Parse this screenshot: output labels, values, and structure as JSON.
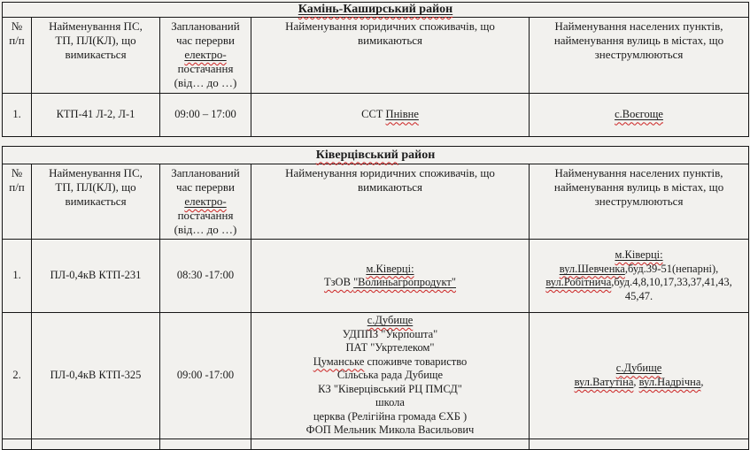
{
  "page": {
    "background": "#f2f1ee",
    "text_color": "#1c1c1c",
    "border_color": "#161616",
    "spellcheck_color": "#cc2222"
  },
  "tables": [
    {
      "name": "kamin-kashyrskyi",
      "title": [
        {
          "t": "Камінь-Каширський район",
          "u": true,
          "sp": true
        }
      ],
      "header": [
        [
          [
            {
              "t": "№"
            }
          ],
          [
            {
              "t": "п/п"
            }
          ]
        ],
        [
          [
            {
              "t": "Найменування ПС,"
            }
          ],
          [
            {
              "t": "ТП, ПЛ(КЛ), що"
            }
          ],
          [
            {
              "t": "вимикається"
            }
          ]
        ],
        [
          [
            {
              "t": "Запланований"
            }
          ],
          [
            {
              "t": "час перерви"
            }
          ],
          [
            {
              "t": "електро-",
              "u": true,
              "sp": true
            }
          ],
          [
            {
              "t": "постачання"
            }
          ],
          [
            {
              "t": "(від… до …)"
            }
          ]
        ],
        [
          [
            {
              "t": "Найменування юридичних споживачів, що"
            }
          ],
          [
            {
              "t": "вимикаються"
            }
          ]
        ],
        [
          [
            {
              "t": "Найменування населених пунктів,"
            }
          ],
          [
            {
              "t": "найменування вулиць в містах, що"
            }
          ],
          [
            {
              "t": "знеструмлюються"
            }
          ]
        ]
      ],
      "rows": [
        [
          [
            [
              {
                "t": "1."
              }
            ]
          ],
          [
            [
              {
                "t": "КТП-41 Л-2, Л-1"
              }
            ]
          ],
          [
            [
              {
                "t": "09:00 – 17:00"
              }
            ]
          ],
          [
            [
              {
                "t": "ССТ "
              },
              {
                "t": "Пнівне",
                "u": true,
                "sp": true
              }
            ]
          ],
          [
            [
              {
                "t": "с.Воєгоще",
                "u": true,
                "sp": true
              }
            ]
          ]
        ]
      ]
    },
    {
      "name": "kivertsivskyi",
      "title": [
        {
          "t": "Ківерцівський",
          "sp": true
        },
        {
          "t": " район"
        }
      ],
      "header": [
        [
          [
            {
              "t": "№"
            }
          ],
          [
            {
              "t": "п/п"
            }
          ]
        ],
        [
          [
            {
              "t": "Найменування ПС,"
            }
          ],
          [
            {
              "t": "ТП, ПЛ(КЛ), що"
            }
          ],
          [
            {
              "t": "вимикається"
            }
          ]
        ],
        [
          [
            {
              "t": "Запланований"
            }
          ],
          [
            {
              "t": "час перерви"
            }
          ],
          [
            {
              "t": "електро-",
              "u": true,
              "sp": true
            }
          ],
          [
            {
              "t": "постачання"
            }
          ],
          [
            {
              "t": "(від… до …)"
            }
          ]
        ],
        [
          [
            {
              "t": "Найменування юридичних споживачів, що"
            }
          ],
          [
            {
              "t": "вимикаються"
            }
          ]
        ],
        [
          [
            {
              "t": "Найменування населених пунктів,"
            }
          ],
          [
            {
              "t": "найменування вулиць в містах, що"
            }
          ],
          [
            {
              "t": "знеструмлюються"
            }
          ]
        ]
      ],
      "rows": [
        [
          [
            [
              {
                "t": "1."
              }
            ]
          ],
          [
            [
              {
                "t": "ПЛ-0,4кВ КТП-231"
              }
            ]
          ],
          [
            [
              {
                "t": "08:30 -17:00"
              }
            ]
          ],
          [
            [
              {
                "t": "м.Ківерці:",
                "u": true,
                "sp": true
              }
            ],
            [
              {
                "t": "ТзОВ ",
                "sp": true
              },
              {
                "t": "\"Волиньагропродукт\"",
                "u": true,
                "sp": true
              }
            ]
          ],
          [
            [
              {
                "t": "м.Ківерці:",
                "u": true,
                "sp": true
              }
            ],
            [
              {
                "t": "вул.Шевченка",
                "u": true,
                "sp": true
              },
              {
                "t": ",буд.39-51(непарні),"
              }
            ],
            [
              {
                "t": "вул.Робітнича",
                "u": true,
                "sp": true
              },
              {
                "t": ",буд.4,8,10,17,33,37,41,43,"
              }
            ],
            [
              {
                "t": "45,47."
              }
            ]
          ]
        ],
        [
          [
            [
              {
                "t": "2."
              }
            ]
          ],
          [
            [
              {
                "t": "ПЛ-0,4кВ КТП-325"
              }
            ]
          ],
          [
            [
              {
                "t": "09:00 -17:00"
              }
            ]
          ],
          [
            [
              {
                "t": "с.Дубище",
                "u": true,
                "sp": true
              }
            ],
            [
              {
                "t": "УДППЗ \"Укрпошта\""
              }
            ],
            [
              {
                "t": "ПАТ \"Укртелеком\""
              }
            ],
            [
              {
                "t": "Цуманське",
                "sp": true
              },
              {
                "t": " споживче товариство"
              }
            ],
            [
              {
                "t": "Сільська рада Дубище"
              }
            ],
            [
              {
                "t": "КЗ \"Ківерцівський РЦ ПМСД\""
              }
            ],
            [
              {
                "t": "школа"
              }
            ],
            [
              {
                "t": "церква (Релігійна громада ЄХБ )"
              }
            ],
            [
              {
                "t": "ФОП Мельник Микола Васильович"
              }
            ]
          ],
          [
            [
              {
                "t": "с.Дубище",
                "u": true,
                "sp": true
              }
            ],
            [
              {
                "t": "вул.Ватутіна",
                "u": true,
                "sp": true
              },
              {
                "t": ", "
              },
              {
                "t": "вул.Надрічна",
                "u": true,
                "sp": true
              },
              {
                "t": ","
              }
            ]
          ]
        ]
      ]
    }
  ]
}
